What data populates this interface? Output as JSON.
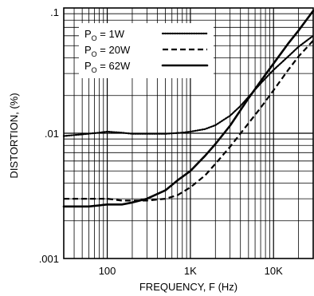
{
  "chart_data": {
    "type": "line",
    "title": "",
    "xlabel": "FREQUENCY, F (Hz)",
    "ylabel": "DISTORTION, (%)",
    "xscale": "log",
    "yscale": "log",
    "xlim": [
      30,
      30000
    ],
    "ylim": [
      0.001,
      0.1
    ],
    "grid": true,
    "legend_position": "top-left",
    "x_ticks": [
      {
        "value": 100,
        "label": "100"
      },
      {
        "value": 1000,
        "label": "1K"
      },
      {
        "value": 10000,
        "label": "10K"
      }
    ],
    "y_ticks": [
      {
        "value": 0.1,
        "label": ".1"
      },
      {
        "value": 0.01,
        "label": ".01"
      },
      {
        "value": 0.001,
        "label": ".001"
      }
    ],
    "series": [
      {
        "name": "P_O = 1W",
        "legend_main": "P",
        "legend_sub": "O",
        "legend_rest": " = 1W",
        "style": "dotted",
        "points": [
          [
            30,
            0.0095
          ],
          [
            50,
            0.0098
          ],
          [
            80,
            0.0101
          ],
          [
            100,
            0.0103
          ],
          [
            150,
            0.0101
          ],
          [
            200,
            0.0099
          ],
          [
            300,
            0.0099
          ],
          [
            500,
            0.0099
          ],
          [
            800,
            0.0101
          ],
          [
            1000,
            0.0103
          ],
          [
            1500,
            0.0108
          ],
          [
            2000,
            0.0116
          ],
          [
            3000,
            0.0138
          ],
          [
            4000,
            0.0165
          ],
          [
            5000,
            0.0195
          ],
          [
            7000,
            0.025
          ],
          [
            10000,
            0.032
          ],
          [
            15000,
            0.041
          ],
          [
            20000,
            0.049
          ],
          [
            30000,
            0.06
          ]
        ]
      },
      {
        "name": "P_O = 20W",
        "legend_main": "P",
        "legend_sub": "O",
        "legend_rest": " = 20W",
        "style": "dashed",
        "points": [
          [
            30,
            0.003
          ],
          [
            60,
            0.003
          ],
          [
            100,
            0.003
          ],
          [
            150,
            0.0029
          ],
          [
            200,
            0.0029
          ],
          [
            300,
            0.0029
          ],
          [
            500,
            0.003
          ],
          [
            700,
            0.0032
          ],
          [
            1000,
            0.0037
          ],
          [
            1500,
            0.0046
          ],
          [
            2000,
            0.0057
          ],
          [
            3000,
            0.0078
          ],
          [
            5000,
            0.012
          ],
          [
            7000,
            0.016
          ],
          [
            10000,
            0.022
          ],
          [
            15000,
            0.032
          ],
          [
            20000,
            0.041
          ],
          [
            30000,
            0.055
          ]
        ]
      },
      {
        "name": "P_O = 62W",
        "legend_main": "P",
        "legend_sub": "O",
        "legend_rest": " = 62W",
        "style": "solid",
        "points": [
          [
            30,
            0.0026
          ],
          [
            60,
            0.0026
          ],
          [
            100,
            0.0027
          ],
          [
            150,
            0.0027
          ],
          [
            200,
            0.0028
          ],
          [
            300,
            0.003
          ],
          [
            500,
            0.0035
          ],
          [
            700,
            0.0042
          ],
          [
            1000,
            0.005
          ],
          [
            1500,
            0.0066
          ],
          [
            2000,
            0.0082
          ],
          [
            3000,
            0.0115
          ],
          [
            5000,
            0.019
          ],
          [
            7000,
            0.026
          ],
          [
            10000,
            0.036
          ],
          [
            15000,
            0.052
          ],
          [
            20000,
            0.066
          ],
          [
            30000,
            0.095
          ]
        ]
      }
    ]
  }
}
